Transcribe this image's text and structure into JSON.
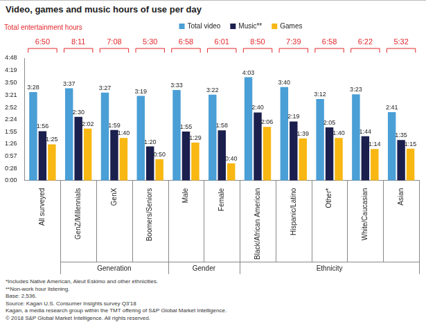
{
  "chart_data": {
    "type": "bar",
    "title": "Video, games and music hours of use per day",
    "categories": [
      "All surveyed",
      "GenZ/Millennials",
      "GenX",
      "Boomers/Seniors",
      "Male",
      "Female",
      "Black/African American",
      "Hispanic/Latino",
      "Other*",
      "White/Caucasian",
      "Asian"
    ],
    "category_groups": [
      null,
      "Generation",
      "Generation",
      "Generation",
      "Gender",
      "Gender",
      "Ethnicity",
      "Ethnicity",
      "Ethnicity",
      "Ethnicity",
      "Ethnicity"
    ],
    "series": [
      {
        "name": "Total video",
        "color": "#4a9fd6",
        "values": [
          208,
          217,
          207,
          199,
          213,
          202,
          243,
          220,
          192,
          203,
          161
        ],
        "value_labels": [
          "3:28",
          "3:37",
          "3:27",
          "3:19",
          "3:33",
          "3:22",
          "4:03",
          "3:40",
          "3:12",
          "3:23",
          "2:41"
        ]
      },
      {
        "name": "Music**",
        "color": "#1b1f4e",
        "values": [
          116,
          150,
          119,
          80,
          115,
          118,
          160,
          139,
          125,
          104,
          95
        ],
        "value_labels": [
          "1:56",
          "2:30",
          "1:59",
          "1:20",
          "1:55",
          "1:58",
          "2:40",
          "2:19",
          "2:05",
          "1:44",
          "1:35"
        ]
      },
      {
        "name": "Games",
        "color": "#f8b712",
        "values": [
          85,
          122,
          100,
          50,
          89,
          40,
          126,
          99,
          100,
          74,
          75
        ],
        "value_labels": [
          "1:25",
          "2:02",
          "1:40",
          "0:50",
          "1:29",
          "0:40",
          "2:06",
          "1:39",
          "1:40",
          "1:14",
          "1:15"
        ]
      }
    ],
    "annotations": {
      "label": "Total entertainment hours",
      "color": "#e3262b",
      "totals": [
        "6:50",
        "8:11",
        "7:08",
        "5:30",
        "6:58",
        "6:01",
        "8:50",
        "7:39",
        "6:58",
        "6:22",
        "5:32"
      ]
    },
    "ylim": [
      0,
      288
    ],
    "yticks": [
      {
        "value": 0,
        "label": "0:00"
      },
      {
        "value": 28,
        "label": "0:28"
      },
      {
        "value": 57,
        "label": "0:57"
      },
      {
        "value": 86,
        "label": "1:26"
      },
      {
        "value": 115,
        "label": "1:55"
      },
      {
        "value": 144,
        "label": "2:24"
      },
      {
        "value": 172,
        "label": "2:52"
      },
      {
        "value": 201,
        "label": "3:21"
      },
      {
        "value": 230,
        "label": "3:50"
      },
      {
        "value": 259,
        "label": "4:19"
      },
      {
        "value": 288,
        "label": "4:48"
      }
    ],
    "grid": false,
    "legend": "top",
    "data_labels": true,
    "notes": [
      "*Includes Native American, Aleut Eskimo and other ethnicities.",
      "**Non-work hour listening.",
      "Base: 2,536.",
      "Source: Kagan U.S. Consumer Insights survey Q3'18",
      "Kagan, a media research group within the TMT offering of S&P Global Market Intelligence.",
      "© 2018 S&P Global Market Intelligence. All rights reserved."
    ]
  }
}
